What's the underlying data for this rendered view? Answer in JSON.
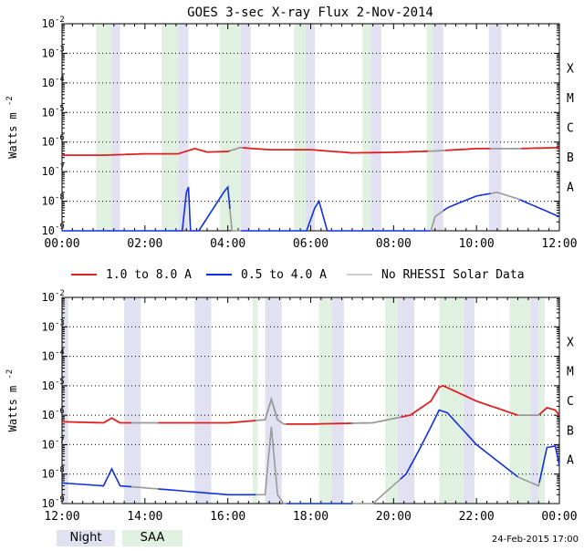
{
  "chart_data": {
    "type": "line",
    "title": "GOES 3-sec X-ray Flux    2-Nov-2014",
    "ylabel_base": "Watts m",
    "ylabel_exp": "-2",
    "y_scale": "log",
    "ylim": [
      1e-09,
      0.01
    ],
    "y_ticks": [
      "10",
      "10",
      "10",
      "10",
      "10",
      "10",
      "10",
      "10"
    ],
    "y_tick_exps": [
      "-9",
      "-8",
      "-7",
      "-6",
      "-5",
      "-4",
      "-3",
      "-2"
    ],
    "flare_classes": [
      "A",
      "B",
      "C",
      "M",
      "X"
    ],
    "legend": [
      {
        "label": "1.0 to 8.0 A",
        "color": "#e02020"
      },
      {
        "label": "0.5 to 4.0 A",
        "color": "#1030e0"
      },
      {
        "label": "No RHESSI Solar Data",
        "color": "#999999"
      }
    ],
    "panels": [
      {
        "xlim": [
          0,
          12
        ],
        "x_ticks": [
          "00:00",
          "02:00",
          "04:00",
          "06:00",
          "08:00",
          "10:00",
          "12:00"
        ],
        "night": [
          [
            1.2,
            1.4
          ],
          [
            2.82,
            3.05
          ],
          [
            4.3,
            4.55
          ],
          [
            5.88,
            6.1
          ],
          [
            7.45,
            7.7
          ],
          [
            8.95,
            9.2
          ],
          [
            10.3,
            10.6
          ]
        ],
        "saa": [
          [
            0.82,
            1.2
          ],
          [
            2.4,
            2.82
          ],
          [
            3.8,
            4.3
          ],
          [
            5.6,
            5.88
          ],
          [
            7.25,
            7.45
          ],
          [
            8.8,
            8.95
          ]
        ],
        "gray_segments": [
          [
            4.05,
            4.3
          ],
          [
            8.8,
            9.2
          ],
          [
            10.3,
            11.0
          ]
        ],
        "long_series": {
          "t": [
            0,
            1.0,
            2.0,
            2.8,
            3.2,
            3.5,
            4.0,
            4.3,
            5.0,
            6.0,
            7.0,
            8.0,
            9.0,
            10.0,
            11.0,
            12.0
          ],
          "v": [
            3.6e-07,
            3.6e-07,
            4e-07,
            4e-07,
            6e-07,
            4.6e-07,
            4.8e-07,
            6.5e-07,
            5.5e-07,
            5.5e-07,
            4.3e-07,
            4.5e-07,
            5e-07,
            6e-07,
            6e-07,
            6.5e-07
          ]
        },
        "short_series": {
          "t": [
            0,
            2.9,
            3.0,
            3.05,
            3.1,
            3.3,
            3.9,
            4.0,
            4.1,
            4.4,
            5.9,
            6.1,
            6.2,
            6.4,
            8.9,
            9.0,
            9.3,
            9.6,
            10.0,
            10.5,
            11.0,
            11.5,
            12.0
          ],
          "v": [
            1e-09,
            1e-09,
            2e-08,
            3e-08,
            1e-09,
            1e-09,
            2e-08,
            3e-08,
            1e-09,
            1e-09,
            1e-09,
            6e-09,
            1e-08,
            1e-09,
            1e-09,
            3e-09,
            6e-09,
            9e-09,
            1.5e-08,
            2e-08,
            1.2e-08,
            6e-09,
            3e-09
          ]
        }
      },
      {
        "xlim": [
          12,
          24
        ],
        "x_ticks": [
          "12:00",
          "14:00",
          "16:00",
          "18:00",
          "20:00",
          "22:00",
          "00:00"
        ],
        "night": [
          [
            12.0,
            12.15
          ],
          [
            13.5,
            13.9
          ],
          [
            15.2,
            15.6
          ],
          [
            16.9,
            17.3
          ],
          [
            18.5,
            18.8
          ],
          [
            20.1,
            20.5
          ],
          [
            21.7,
            21.95
          ],
          [
            23.3,
            23.5
          ]
        ],
        "saa": [
          [
            16.6,
            16.72
          ],
          [
            18.2,
            18.5
          ],
          [
            19.8,
            20.1
          ],
          [
            21.1,
            21.7
          ],
          [
            22.8,
            23.3
          ],
          [
            23.5,
            23.65
          ]
        ],
        "gray_segments": [
          [
            13.6,
            14.3
          ],
          [
            16.6,
            17.35
          ],
          [
            18.9,
            20.1
          ],
          [
            23.0,
            23.5
          ]
        ],
        "long_series": {
          "t": [
            12,
            13.0,
            13.2,
            13.4,
            14.5,
            16.0,
            16.9,
            17.05,
            17.2,
            17.35,
            18.0,
            19.5,
            20.4,
            20.9,
            21.1,
            21.2,
            22.0,
            23.0,
            23.5,
            23.7,
            23.9,
            24.0
          ],
          "v": [
            6e-07,
            5.5e-07,
            8e-07,
            5.5e-07,
            5.5e-07,
            5.5e-07,
            7e-07,
            3.5e-06,
            7e-07,
            5e-07,
            5e-07,
            5.5e-07,
            1e-06,
            3e-06,
            9e-06,
            1e-05,
            3e-06,
            1e-06,
            1e-06,
            1.8e-06,
            1.5e-06,
            1e-06
          ]
        },
        "short_series": {
          "t": [
            12,
            13.0,
            13.2,
            13.4,
            14.5,
            16.0,
            16.9,
            17.05,
            17.2,
            17.35,
            18.0,
            19.5,
            20.3,
            20.6,
            20.9,
            21.1,
            21.3,
            22.0,
            23.0,
            23.5,
            23.7,
            23.9,
            24.0
          ],
          "v": [
            5e-09,
            4e-09,
            1.5e-08,
            4e-09,
            3e-09,
            2e-09,
            2e-09,
            4e-07,
            2e-09,
            1e-09,
            1e-09,
            1e-09,
            1e-08,
            6e-08,
            4e-07,
            1.5e-06,
            1.2e-06,
            1e-07,
            8e-09,
            4e-09,
            8e-08,
            9e-08,
            2e-08
          ]
        }
      }
    ]
  },
  "footer": {
    "night_label": "Night",
    "saa_label": "SAA",
    "generated": "24-Feb-2015 17:00"
  }
}
